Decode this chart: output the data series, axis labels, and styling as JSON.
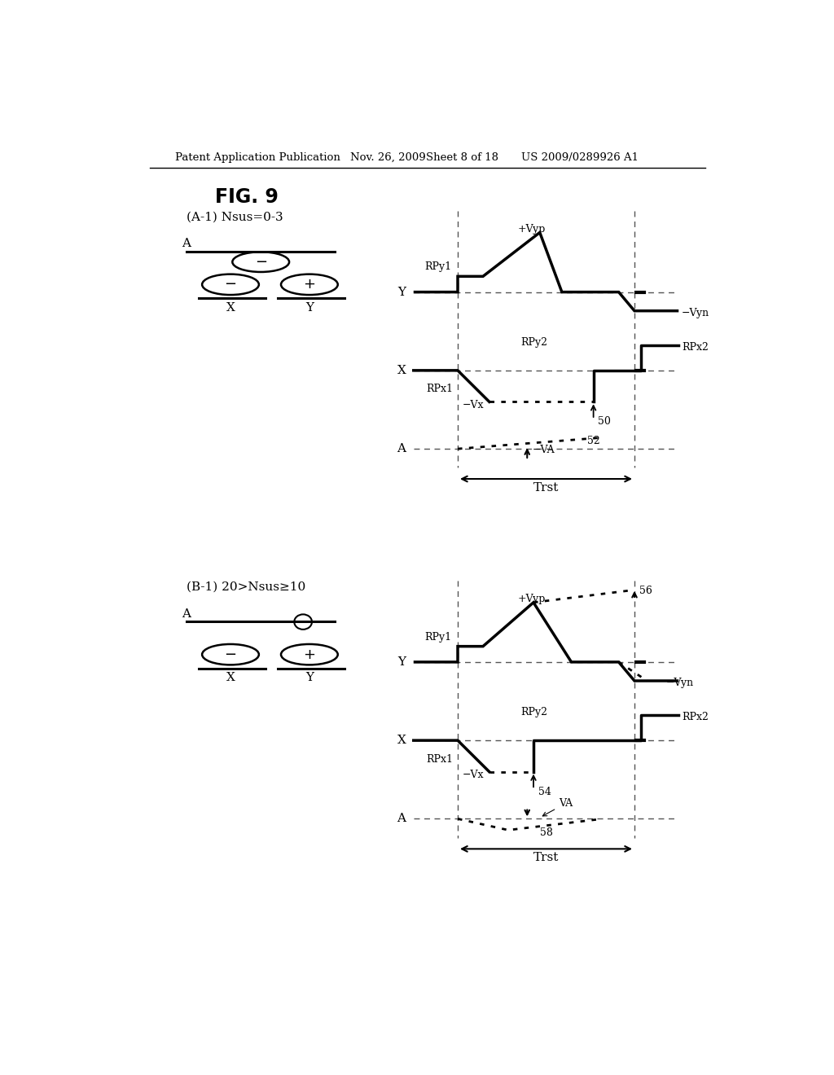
{
  "title": "FIG. 9",
  "header_left": "Patent Application Publication",
  "header_mid1": "Nov. 26, 2009",
  "header_mid2": "Sheet 8 of 18",
  "header_right": "US 2009/0289926 A1",
  "panel_A_label": "(A-1) Nsus=0-3",
  "panel_B_label": "(B-1) 20>Nsus≥10",
  "bg_color": "#ffffff",
  "line_color": "#000000"
}
